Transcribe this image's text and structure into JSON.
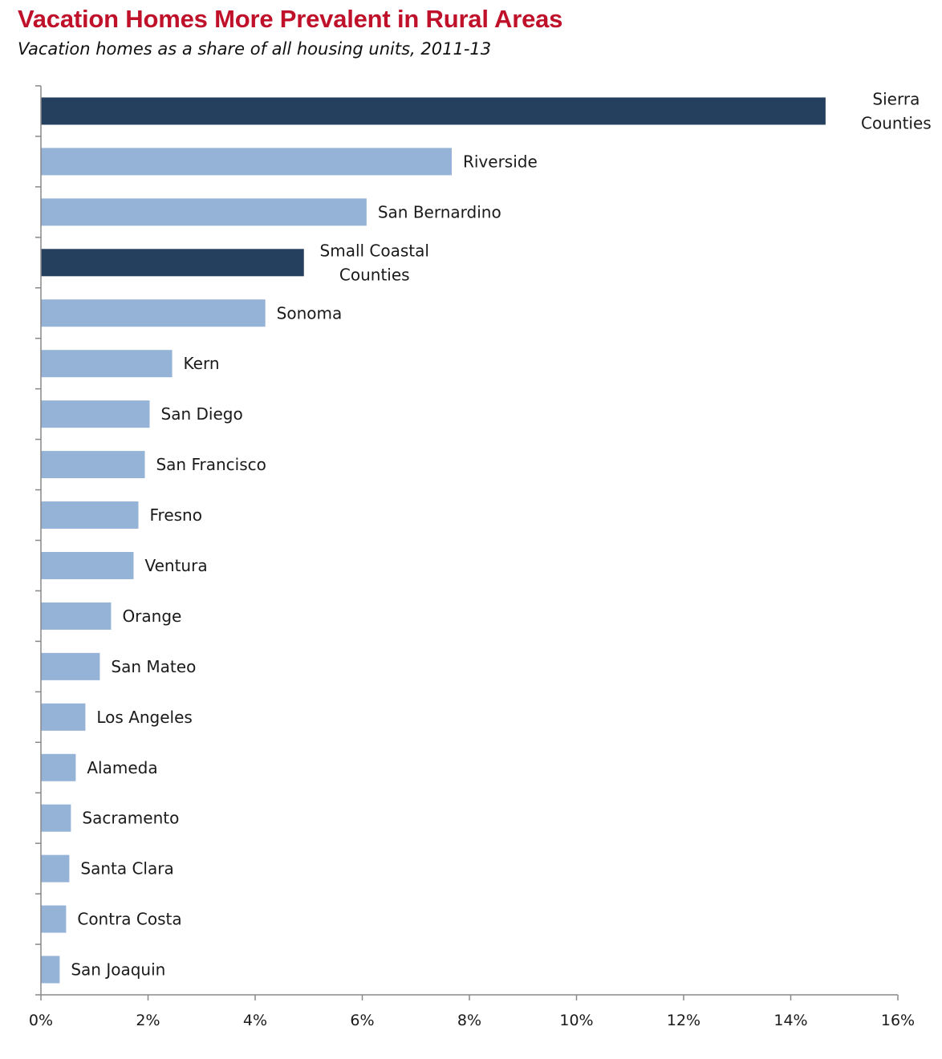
{
  "chart_data": {
    "type": "bar",
    "orientation": "horizontal",
    "title": "Vacation Homes More Prevalent in Rural Areas",
    "subtitle": "Vacation homes as a share of all housing units, 2011-13",
    "xlabel": "",
    "ylabel": "",
    "xlim": [
      0,
      16
    ],
    "x_ticks": [
      0,
      2,
      4,
      6,
      8,
      10,
      12,
      14,
      16
    ],
    "x_tick_labels": [
      "0%",
      "2%",
      "4%",
      "6%",
      "8%",
      "10%",
      "12%",
      "14%",
      "16%"
    ],
    "grid": false,
    "legend": "none",
    "categories": [
      "Sierra Counties",
      "Riverside",
      "San Bernardino",
      "Small Coastal Counties",
      "Sonoma",
      "Kern",
      "San Diego",
      "San Francisco",
      "Fresno",
      "Ventura",
      "Orange",
      "San Mateo",
      "Los Angeles",
      "Alameda",
      "Sacramento",
      "Santa Clara",
      "Contra Costa",
      "San Joaquin"
    ],
    "label_lines": [
      [
        "Sierra",
        "Counties"
      ],
      [
        "Riverside"
      ],
      [
        "San Bernardino"
      ],
      [
        "Small Coastal",
        "Counties"
      ],
      [
        "Sonoma"
      ],
      [
        "Kern"
      ],
      [
        "San Diego"
      ],
      [
        "San Francisco"
      ],
      [
        "Fresno"
      ],
      [
        "Ventura"
      ],
      [
        "Orange"
      ],
      [
        "San Mateo"
      ],
      [
        "Los Angeles"
      ],
      [
        "Alameda"
      ],
      [
        "Sacramento"
      ],
      [
        "Santa Clara"
      ],
      [
        "Contra Costa"
      ],
      [
        "San Joaquin"
      ]
    ],
    "values": [
      14.65,
      7.67,
      6.08,
      4.91,
      4.19,
      2.45,
      2.03,
      1.94,
      1.82,
      1.73,
      1.31,
      1.1,
      0.83,
      0.65,
      0.56,
      0.53,
      0.47,
      0.35
    ],
    "highlight": [
      true,
      false,
      false,
      true,
      false,
      false,
      false,
      false,
      false,
      false,
      false,
      false,
      false,
      false,
      false,
      false,
      false,
      false
    ],
    "colors": {
      "highlight": "#253f5e",
      "default": "#95b3d7",
      "title": "#c0112b",
      "axis": "#888888"
    }
  }
}
